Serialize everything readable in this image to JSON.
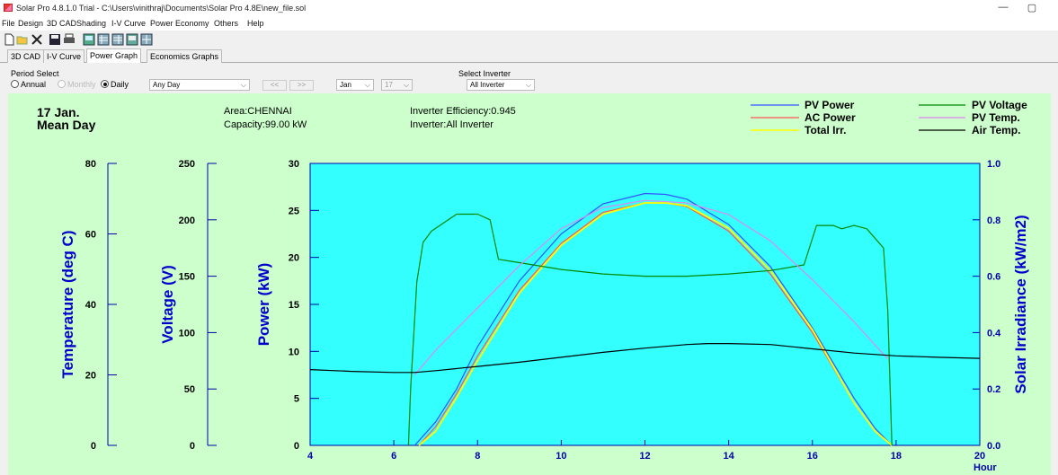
{
  "window": {
    "title": "Solar Pro 4.8.1.0 Trial - C:\\Users\\vinithraj\\Documents\\Solar Pro 4.8E\\new_file.sol",
    "minimize": "—",
    "restore": "▢"
  },
  "menu": [
    "File",
    "Design",
    "3D CAD",
    "Shading",
    "I-V Curve",
    "Power",
    "Economy",
    "Others",
    "Help"
  ],
  "toolbar_icons": [
    "new-icon",
    "open-icon",
    "close-icon",
    "save-icon",
    "print-icon",
    "view1-icon",
    "view2-icon",
    "view3-icon",
    "view4-icon",
    "view5-icon"
  ],
  "tabs": [
    {
      "label": "3D CAD",
      "active": false
    },
    {
      "label": "I-V Curve",
      "active": false
    },
    {
      "label": "Power Graph",
      "active": true
    },
    {
      "label": "Economics Graphs",
      "active": false
    }
  ],
  "controls": {
    "period_label": "Period Select",
    "annual": "Annual",
    "monthly": "Monthly",
    "daily": "Daily",
    "day_select": "Any Day",
    "prev": "<<",
    "next": ">>",
    "month": "Jan",
    "day": "17",
    "inverter_label": "Select Inverter",
    "inverter": "All Inverter"
  },
  "info": {
    "date": "17 Jan.",
    "day_type": "Mean Day",
    "area": "Area:CHENNAI",
    "capacity": "Capacity:99.00 kW",
    "efficiency": "Inverter Efficiency:0.945",
    "inverter": "Inverter:All Inverter"
  },
  "colors": {
    "plot_bg": "#33ffff",
    "panel_bg": "#ccffcc",
    "axis": "#0000aa",
    "pv_power": "#3355ff",
    "ac_power": "#ff5555",
    "total_irr": "#ffff00",
    "pv_voltage": "#008800",
    "pv_temp": "#dd88ee",
    "air_temp": "#000000"
  },
  "chart_data": {
    "type": "line",
    "xlabel": "Hour",
    "xlim": [
      4,
      20
    ],
    "xticks": [
      4,
      6,
      8,
      10,
      12,
      14,
      16,
      18,
      20
    ],
    "axes": {
      "temperature": {
        "label": "Temperature (deg C)",
        "range": [
          0,
          80
        ],
        "ticks": [
          0,
          20,
          40,
          60,
          80
        ]
      },
      "voltage": {
        "label": "Voltage (V)",
        "range": [
          0,
          250
        ],
        "ticks": [
          0,
          50,
          100,
          150,
          200,
          250
        ]
      },
      "power": {
        "label": "Power (kW)",
        "range": [
          0,
          30
        ],
        "ticks": [
          0,
          5,
          10,
          15,
          20,
          25,
          30
        ]
      },
      "irradiance": {
        "label": "Solar Irradiance (kW/m2)",
        "range": [
          0,
          1.0
        ],
        "ticks": [
          "0.0",
          "0.2",
          "0.4",
          "0.6",
          "0.8",
          "1.0"
        ]
      }
    },
    "legend": [
      "PV Power",
      "AC Power",
      "Total Irr.",
      "PV Voltage",
      "PV Temp.",
      "Air Temp."
    ],
    "series": [
      {
        "name": "PV Power",
        "axis": "power",
        "color": "#3355ff",
        "x": [
          6.5,
          7,
          7.5,
          8,
          9,
          10,
          11,
          12,
          12.5,
          13,
          14,
          15,
          16,
          17,
          17.5,
          17.9
        ],
        "y": [
          0,
          2.5,
          6,
          10.5,
          17.5,
          22.5,
          25.7,
          26.8,
          26.7,
          26.2,
          23.5,
          19,
          12.5,
          5,
          1.8,
          0
        ]
      },
      {
        "name": "AC Power",
        "axis": "power",
        "color": "#ff5555",
        "x": [
          6.6,
          7,
          7.5,
          8,
          9,
          10,
          11,
          12,
          12.5,
          13,
          14,
          15,
          16,
          17,
          17.5,
          17.9
        ],
        "y": [
          0,
          2,
          5.5,
          9.5,
          16.5,
          21.5,
          24.8,
          25.8,
          25.8,
          25.4,
          22.8,
          18.2,
          12,
          4.5,
          1.5,
          0
        ]
      },
      {
        "name": "Total Irr.",
        "axis": "irradiance",
        "color": "#ffff00",
        "x": [
          6.6,
          7,
          7.5,
          8,
          9,
          10,
          11,
          12,
          12.5,
          13,
          14,
          15,
          16,
          17,
          17.5,
          17.9
        ],
        "y": [
          0,
          0.05,
          0.17,
          0.3,
          0.54,
          0.71,
          0.82,
          0.86,
          0.86,
          0.85,
          0.77,
          0.62,
          0.41,
          0.15,
          0.05,
          0
        ]
      },
      {
        "name": "PV Voltage",
        "axis": "voltage",
        "color": "#008800",
        "x": [
          6.35,
          6.4,
          6.55,
          6.7,
          6.9,
          7.1,
          7.3,
          7.5,
          8.0,
          8.3,
          8.5,
          9,
          10,
          11,
          12,
          13,
          14,
          15,
          15.8,
          16.1,
          16.5,
          16.7,
          17,
          17.3,
          17.7,
          17.8,
          17.9
        ],
        "y": [
          0,
          50,
          145,
          180,
          190,
          195,
          200,
          205,
          205,
          200,
          165,
          162,
          156,
          152,
          150,
          150,
          152,
          155,
          160,
          195,
          195,
          192,
          195,
          192,
          175,
          120,
          0
        ]
      },
      {
        "name": "PV Temp.",
        "axis": "temperature",
        "color": "#dd88ee",
        "x": [
          6.5,
          7,
          8,
          9,
          10,
          11,
          12,
          13,
          14,
          15,
          16,
          17,
          17.8
        ],
        "y": [
          20,
          27,
          39,
          51,
          61.5,
          67.5,
          69.5,
          68.8,
          65.5,
          58,
          47,
          35,
          24.5
        ]
      },
      {
        "name": "Air Temp.",
        "axis": "temperature",
        "color": "#000000",
        "x": [
          4,
          5,
          6,
          6.5,
          7,
          8,
          9,
          10,
          11,
          12,
          13,
          13.5,
          14,
          15,
          16,
          17,
          18,
          19,
          20
        ],
        "y": [
          21.5,
          21,
          20.7,
          20.7,
          21.2,
          22.4,
          23.6,
          25,
          26.4,
          27.6,
          28.6,
          28.9,
          28.9,
          28.6,
          27.4,
          26.2,
          25.4,
          25,
          24.7
        ]
      }
    ]
  }
}
